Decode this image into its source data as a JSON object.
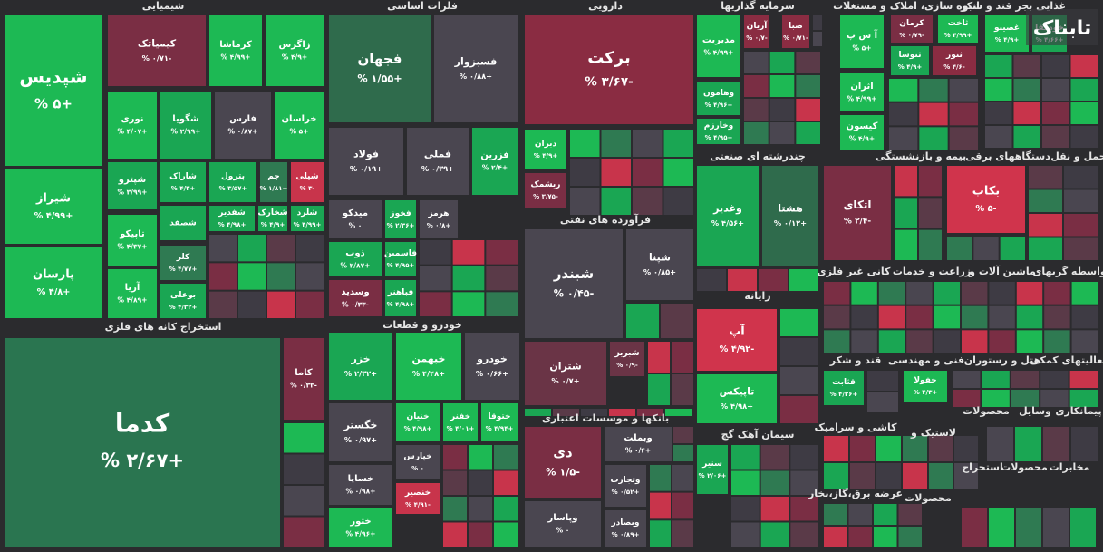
{
  "brand": "تابناک",
  "sectors": [
    {
      "title": "شیمیایی",
      "cells": [
        {
          "name": "شپدیس",
          "change": "+۵ %",
          "color": "#1db954"
        },
        {
          "name": "شیراز",
          "change": "+۴/۹۹ %",
          "color": "#1db954"
        },
        {
          "name": "پارسان",
          "change": "+۴/۸ %",
          "color": "#1db954"
        },
        {
          "name": "کیمیاتک",
          "change": "-۰/۷۱ %",
          "color": "#7a2e44"
        },
        {
          "name": "کرماشا",
          "change": "+۴/۹۹ %",
          "color": "#1db954"
        },
        {
          "name": "زاگرس",
          "change": "+۴/۹ %",
          "color": "#1db954"
        },
        {
          "name": "نوری",
          "change": "+۴/۰۷ %",
          "color": "#1db954"
        },
        {
          "name": "شگویا",
          "change": "+۲/۹۹ %",
          "color": "#1aa653"
        },
        {
          "name": "فارس",
          "change": "+۰/۸۷ %",
          "color": "#4a4650"
        },
        {
          "name": "خراسان",
          "change": "+۵ %",
          "color": "#1db954"
        },
        {
          "name": "شپترو",
          "change": "+۳/۹۹ %",
          "color": "#1aa653"
        },
        {
          "name": "شاراک",
          "change": "+۴/۳ %",
          "color": "#1aa653"
        },
        {
          "name": "پترول",
          "change": "+۳/۵۷ %",
          "color": "#1aa653"
        },
        {
          "name": "جم",
          "change": "+۱/۸۱ %",
          "color": "#2f7a52"
        },
        {
          "name": "شیلی",
          "change": "-۳ %",
          "color": "#c8344b"
        },
        {
          "name": "تاپیکو",
          "change": "+۴/۳۷ %",
          "color": "#1db954"
        },
        {
          "name": "شصفد",
          "color": "#1aa653"
        },
        {
          "name": "شفدیر",
          "change": "+۴/۹۸ %",
          "color": "#1aa653"
        },
        {
          "name": "شخارک",
          "change": "+۴/۹ %",
          "color": "#1aa653"
        },
        {
          "name": "شلرد",
          "change": "+۴/۹۹ %",
          "color": "#1aa653"
        },
        {
          "name": "آریا",
          "change": "+۴/۸۹ %",
          "color": "#1db954"
        },
        {
          "name": "کلر",
          "change": "+۴/۷۷ %",
          "color": "#2f7a52"
        },
        {
          "name": "بوعلی",
          "change": "+۴/۳۲ %",
          "color": "#1aa653"
        }
      ]
    },
    {
      "title": "فلزات اساسی",
      "cells": [
        {
          "name": "فجهان",
          "change": "+۱/۵۵ %",
          "color": "#2f6b4c"
        },
        {
          "name": "فسبزوار",
          "change": "+۰/۸۸ %",
          "color": "#4a4650"
        },
        {
          "name": "فولاد",
          "change": "+۰/۱۹ %",
          "color": "#4a4650"
        },
        {
          "name": "فملی",
          "change": "+۰/۳۹ %",
          "color": "#4a4650"
        },
        {
          "name": "فزرین",
          "change": "+۲/۴ %",
          "color": "#1aa653"
        },
        {
          "name": "میدکو",
          "change": "۰ %",
          "color": "#4a4650"
        },
        {
          "name": "فخوز",
          "change": "+۲/۳۶ %",
          "color": "#1aa653"
        },
        {
          "name": "هرمز",
          "change": "+۰/۸ %",
          "color": "#4a4650"
        },
        {
          "name": "ذوب",
          "change": "+۲/۸۷ %",
          "color": "#1aa653"
        },
        {
          "name": "فاسمین",
          "change": "+۴/۹۵ %",
          "color": "#1aa653"
        },
        {
          "name": "وسدید",
          "change": "-۰/۳۳ %",
          "color": "#7a2e44"
        },
        {
          "name": "فباهنر",
          "change": "+۴/۹۸ %",
          "color": "#1aa653"
        }
      ]
    },
    {
      "title": "دارویی",
      "cells": [
        {
          "name": "برکت",
          "change": "-۳/۶۷ %",
          "color": "#8a2c42"
        },
        {
          "name": "دبران",
          "change": "+۴/۹ %",
          "color": "#1db954"
        },
        {
          "name": "ریشمک",
          "change": "-۳/۷۵ %",
          "color": "#7a2e44"
        }
      ]
    },
    {
      "title": "فرآورده های نفتی",
      "cells": [
        {
          "name": "شبندر",
          "change": "-۰/۴۵ %",
          "color": "#4a4650"
        },
        {
          "name": "شپنا",
          "change": "+۰/۸۵ %",
          "color": "#4a4650"
        },
        {
          "name": "شتران",
          "change": "+۰/۷ %",
          "color": "#6a3446"
        },
        {
          "name": "شبریز",
          "change": "-۰/۹ %",
          "color": "#6a3446"
        }
      ]
    },
    {
      "title": "بانکها و موسسات اعتباری",
      "cells": [
        {
          "name": "دی",
          "change": "-۱/۵ %",
          "color": "#7a2e44"
        },
        {
          "name": "وپاسار",
          "change": "۰ %",
          "color": "#4a4650"
        },
        {
          "name": "وبملت",
          "change": "+۰/۴ %",
          "color": "#4a4650"
        },
        {
          "name": "وتجارت",
          "change": "+۰/۵۲ %",
          "color": "#4a4650"
        },
        {
          "name": "وبصادر",
          "change": "+۰/۸۹ %",
          "color": "#4a4650"
        }
      ]
    },
    {
      "title": "خودرو و قطعات",
      "cells": [
        {
          "name": "خزر",
          "change": "+۲/۳۲ %",
          "color": "#1aa653"
        },
        {
          "name": "خبهمن",
          "change": "+۴/۴۸ %",
          "color": "#1db954"
        },
        {
          "name": "خودرو",
          "change": "+۰/۶۶ %",
          "color": "#4a4650"
        },
        {
          "name": "خگستر",
          "change": "+۰/۹۷ %",
          "color": "#4a4650"
        },
        {
          "name": "خنیان",
          "change": "+۴/۹۸ %",
          "color": "#1db954"
        },
        {
          "name": "خفنر",
          "change": "+۴/۰۱ %",
          "color": "#1db954"
        },
        {
          "name": "ختوقا",
          "change": "+۴/۹۴ %",
          "color": "#1db954"
        },
        {
          "name": "خپارس",
          "change": "۰ %",
          "color": "#4a4650"
        },
        {
          "name": "خساپا",
          "change": "+۰/۹۸ %",
          "color": "#4a4650"
        },
        {
          "name": "خنصیر",
          "change": "-۴/۹۱ %",
          "color": "#c8344b"
        },
        {
          "name": "ختور",
          "change": "+۴/۹۶ %",
          "color": "#1db954"
        }
      ]
    },
    {
      "title": "استخراج کانه های فلزی",
      "cells": [
        {
          "name": "کدما",
          "change": "+۲/۶۷ %",
          "color": "#2a7550"
        },
        {
          "name": "کاما",
          "change": "-۰/۳۳ %",
          "color": "#7a2e44"
        }
      ]
    },
    {
      "title": "سرمایه گذاریها",
      "cells": [
        {
          "name": "مدیریت",
          "change": "+۴/۹۹ %",
          "color": "#1db954"
        },
        {
          "name": "آریان",
          "change": "-۰/۷ %",
          "color": "#8a2c42"
        },
        {
          "name": "صبا",
          "change": "-۰/۷۱ %",
          "color": "#8a2c42"
        },
        {
          "name": "وهامون",
          "change": "+۴/۹۶ %",
          "color": "#1aa653"
        },
        {
          "name": "وخارزم",
          "change": "+۴/۹۵ %",
          "color": "#1aa653"
        }
      ]
    },
    {
      "title": "انبوه سازی، املاک و مستغلات",
      "cells": [
        {
          "name": "آ س پ",
          "change": "+۵ %",
          "color": "#1db954"
        },
        {
          "name": "کرمان",
          "change": "-۰/۷۹ %",
          "color": "#7a2e44"
        },
        {
          "name": "ثاخت",
          "change": "+۴/۹۹ %",
          "color": "#1db954"
        },
        {
          "name": "ثنوسا",
          "change": "+۴/۹ %",
          "color": "#1aa653"
        },
        {
          "name": "ثنور",
          "change": "-۴/۶ %",
          "color": "#8a2c42"
        },
        {
          "name": "اثران",
          "change": "+۴/۹۹ %",
          "color": "#1db954"
        },
        {
          "name": "کیسون",
          "change": "+۴/۹ %",
          "color": "#1db954"
        }
      ]
    },
    {
      "title": "غذایی بجز قند و شکر",
      "cells": [
        {
          "name": "غصینو",
          "change": "+۴/۹ %",
          "color": "#1db954"
        },
        {
          "name": "خودکفا",
          "change": "+۴/۶۶ %",
          "color": "#1aa653"
        }
      ]
    },
    {
      "title": "چندرشته ای صنعتی",
      "cells": [
        {
          "name": "وغدیر",
          "change": "+۴/۵۶ %",
          "color": "#1aa653"
        },
        {
          "name": "هشتا",
          "change": "+۰/۱۲ %",
          "color": "#2f6b4c"
        }
      ]
    },
    {
      "title": "بیمه و بازنشستگی",
      "cells": [
        {
          "name": "اتکای",
          "change": "-۲/۴ %",
          "color": "#7a2e44"
        }
      ]
    },
    {
      "title": "دستگاههای برقی",
      "cells": [
        {
          "name": "بکاب",
          "change": "-۵ %",
          "color": "#d0344c"
        }
      ]
    },
    {
      "title": "حمل و نقل",
      "cells": []
    },
    {
      "title": "رایانه",
      "cells": [
        {
          "name": "آپ",
          "change": "-۴/۹۲ %",
          "color": "#d0344c"
        },
        {
          "name": "تاپیکس",
          "change": "+۴/۹۸ %",
          "color": "#1db954"
        }
      ]
    },
    {
      "title": "سیمان آهک گچ",
      "cells": [
        {
          "name": "سنیر",
          "change": "+۲/۰۶ %",
          "color": "#1aa653"
        }
      ]
    },
    {
      "title": "کانی غیر فلزی",
      "cells": []
    },
    {
      "title": "زراعت و خدمات",
      "cells": []
    },
    {
      "title": "ماشین آلات و",
      "cells": []
    },
    {
      "title": "واسطه گریهای",
      "cells": []
    },
    {
      "title": "قند و شکر",
      "cells": [
        {
          "name": "قثابت",
          "change": "+۴/۳۶ %",
          "color": "#1aa653"
        }
      ]
    },
    {
      "title": "فنی و مهندسی",
      "cells": [
        {
          "name": "خفولا",
          "change": "+۴/۳ %",
          "color": "#1db954"
        }
      ]
    },
    {
      "title": "هتل و رستوران",
      "cells": []
    },
    {
      "title": "فعالیتهای کمکی",
      "cells": []
    },
    {
      "title": "کاشی و سرامیک",
      "cells": []
    },
    {
      "title": "لاستیک و",
      "cells": []
    },
    {
      "title": "محصولات",
      "cells": []
    },
    {
      "title": "وسایل",
      "cells": []
    },
    {
      "title": "پیمانکاری",
      "cells": []
    },
    {
      "title": "عرضه برق،گاز،بخار",
      "cells": []
    },
    {
      "title": "محصولات",
      "cells": []
    },
    {
      "title": "استخراج",
      "cells": []
    },
    {
      "title": "محصولات",
      "cells": []
    },
    {
      "title": "مخابرات",
      "cells": []
    }
  ]
}
